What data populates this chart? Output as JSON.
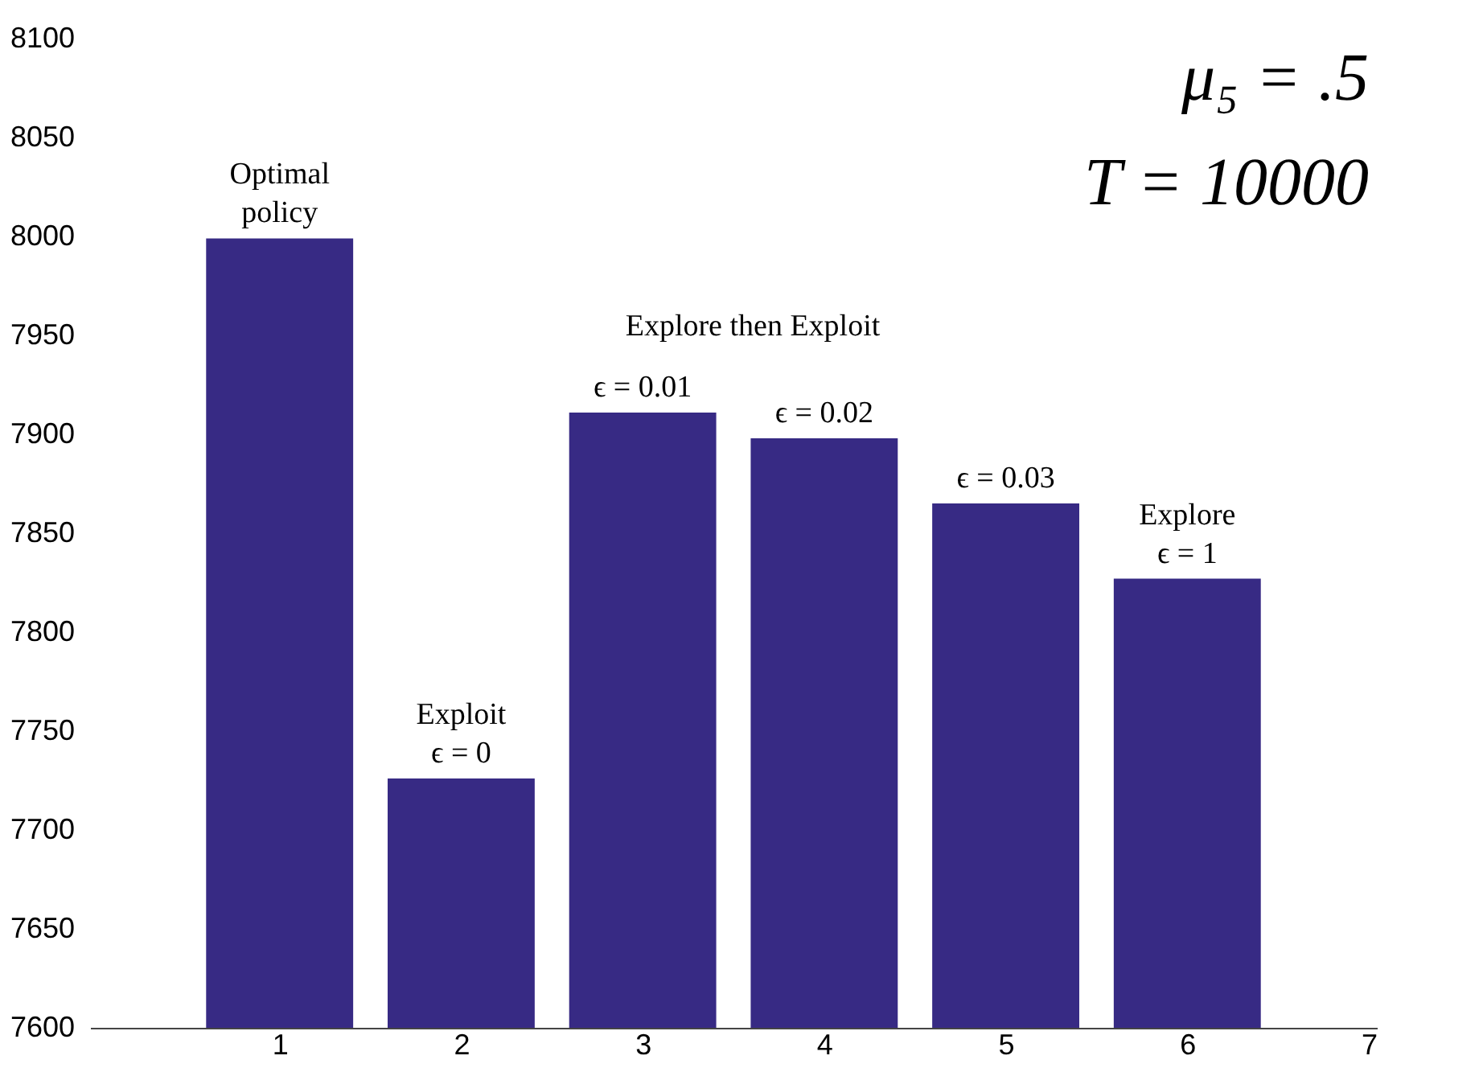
{
  "chart_data": {
    "type": "bar",
    "x": [
      1,
      2,
      3,
      4,
      5,
      6
    ],
    "values": [
      7999,
      7726,
      7911,
      7898,
      7865,
      7827
    ],
    "color": "#372a84",
    "xlim": [
      0,
      7
    ],
    "xticks": [
      1,
      2,
      3,
      4,
      5,
      6,
      7
    ],
    "ylim": [
      7600,
      8100
    ],
    "yticks": [
      7600,
      7650,
      7700,
      7750,
      7800,
      7850,
      7900,
      7950,
      8000,
      8050,
      8100
    ],
    "grid": false,
    "annotations": [
      {
        "text": "Optimal\npolicy",
        "x": 1,
        "y": 7999
      },
      {
        "text": "Exploit\nϵ = 0",
        "x": 2,
        "y": 7726
      },
      {
        "text": "ϵ = 0.01",
        "x": 3,
        "y": 7911
      },
      {
        "text": "ϵ = 0.02",
        "x": 4,
        "y": 7898
      },
      {
        "text": "ϵ = 0.03",
        "x": 5,
        "y": 7865
      },
      {
        "text": "Explore\nϵ = 1",
        "x": 6,
        "y": 7827
      },
      "Explore then Exploit",
      "μ₅ = .5",
      "T = 10000"
    ]
  }
}
